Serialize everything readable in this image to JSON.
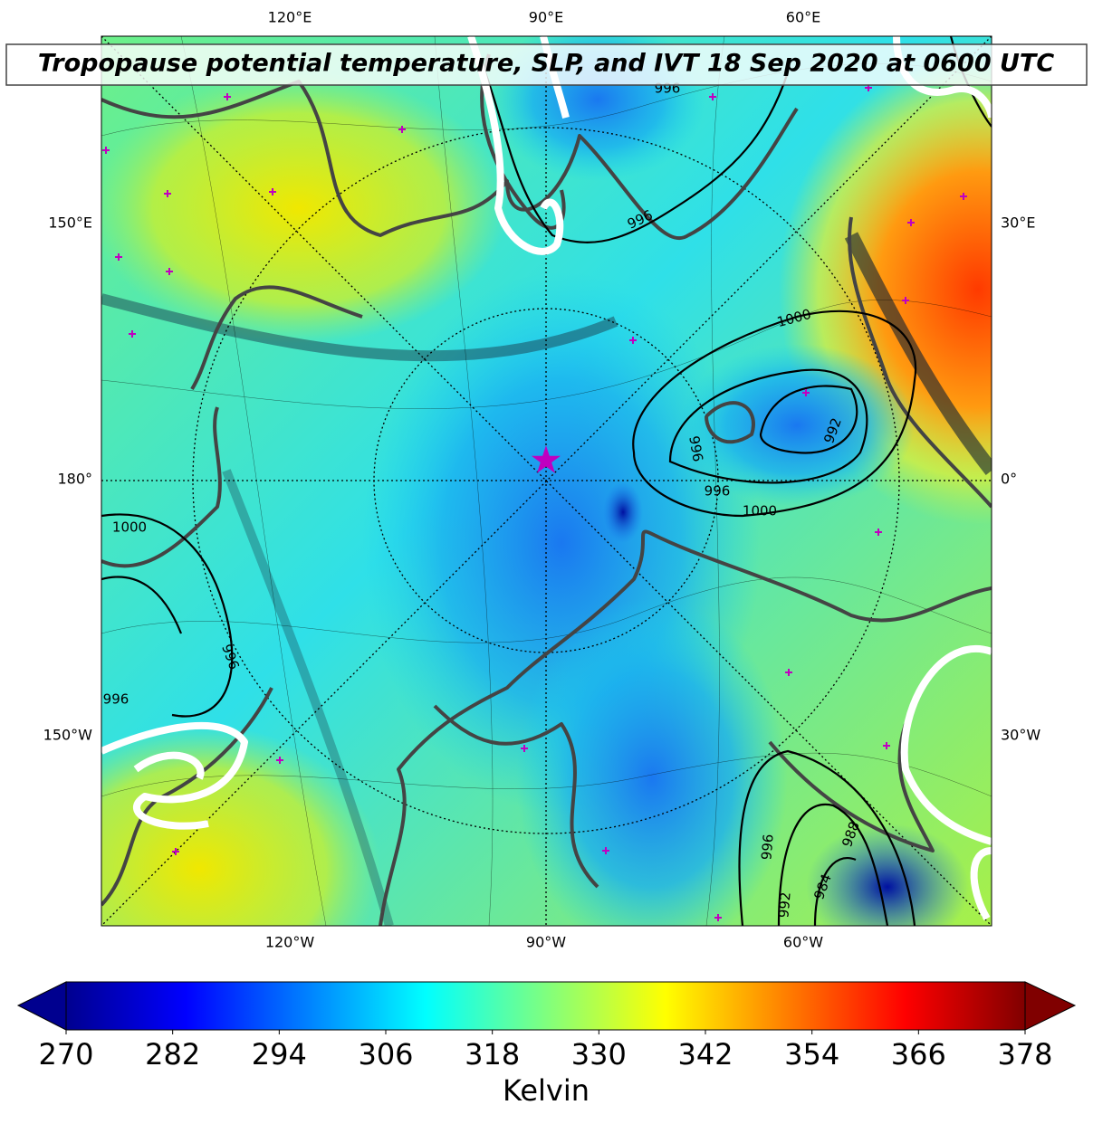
{
  "title": "Tropopause potential temperature, SLP, and IVT 18 Sep 2020 at 0600 UTC",
  "grid_labels": {
    "top": [
      "120°E",
      "90°E",
      "60°E"
    ],
    "left": [
      "150°E",
      "180°",
      "150°W"
    ],
    "right": [
      "30°E",
      "0°",
      "30°W"
    ],
    "bottom": [
      "120°W",
      "90°W",
      "60°W"
    ]
  },
  "contour_labels": [
    "996",
    "996",
    "1000",
    "992",
    "996",
    "996",
    "1000",
    "1000",
    "996",
    "996",
    "996",
    "988",
    "984",
    "992"
  ],
  "colorbar": {
    "range": [
      270,
      378
    ],
    "ticks": [
      270,
      282,
      294,
      306,
      318,
      330,
      342,
      354,
      366,
      378
    ],
    "label": "Kelvin"
  }
}
